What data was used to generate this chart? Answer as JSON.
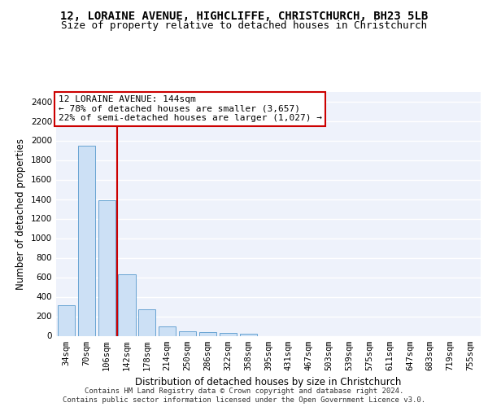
{
  "title_line1": "12, LORAINE AVENUE, HIGHCLIFFE, CHRISTCHURCH, BH23 5LB",
  "title_line2": "Size of property relative to detached houses in Christchurch",
  "xlabel": "Distribution of detached houses by size in Christchurch",
  "ylabel": "Number of detached properties",
  "categories": [
    "34sqm",
    "70sqm",
    "106sqm",
    "142sqm",
    "178sqm",
    "214sqm",
    "250sqm",
    "286sqm",
    "322sqm",
    "358sqm",
    "395sqm",
    "431sqm",
    "467sqm",
    "503sqm",
    "539sqm",
    "575sqm",
    "611sqm",
    "647sqm",
    "683sqm",
    "719sqm",
    "755sqm"
  ],
  "values": [
    315,
    1950,
    1385,
    630,
    270,
    100,
    48,
    35,
    30,
    22,
    0,
    0,
    0,
    0,
    0,
    0,
    0,
    0,
    0,
    0,
    0
  ],
  "bar_color": "#cce0f5",
  "bar_edge_color": "#5599cc",
  "annotation_text": "12 LORAINE AVENUE: 144sqm\n← 78% of detached houses are smaller (3,657)\n22% of semi-detached houses are larger (1,027) →",
  "annotation_box_color": "#ffffff",
  "annotation_border_color": "#cc0000",
  "red_line_color": "#cc0000",
  "footer_line1": "Contains HM Land Registry data © Crown copyright and database right 2024.",
  "footer_line2": "Contains public sector information licensed under the Open Government Licence v3.0.",
  "ylim": [
    0,
    2500
  ],
  "yticks": [
    0,
    200,
    400,
    600,
    800,
    1000,
    1200,
    1400,
    1600,
    1800,
    2000,
    2200,
    2400
  ],
  "background_color": "#eef2fb",
  "grid_color": "#ffffff",
  "title_fontsize": 10,
  "subtitle_fontsize": 9,
  "axis_label_fontsize": 8.5,
  "tick_fontsize": 7.5,
  "annotation_fontsize": 8
}
